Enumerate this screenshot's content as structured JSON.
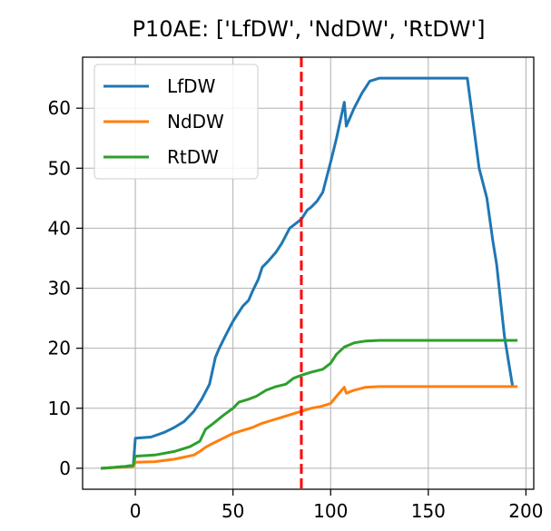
{
  "chart_data": {
    "type": "line",
    "title": "P10AE: ['LfDW', 'NdDW', 'RtDW']",
    "xlabel": "",
    "ylabel": "",
    "xlim": [
      -27,
      204
    ],
    "ylim": [
      -3.5,
      68.5
    ],
    "xticks": [
      0,
      50,
      100,
      150,
      200
    ],
    "yticks": [
      0,
      10,
      20,
      30,
      40,
      50,
      60
    ],
    "grid": true,
    "legend_position": "top-left",
    "vline": {
      "x": 85,
      "color": "#ff0000",
      "style": "dashed"
    },
    "series": [
      {
        "name": "LfDW",
        "color": "#1f77b4",
        "points": [
          [
            -17,
            0
          ],
          [
            -5,
            0.3
          ],
          [
            -1,
            0.5
          ],
          [
            0,
            5
          ],
          [
            8,
            5.2
          ],
          [
            15,
            6
          ],
          [
            20,
            6.8
          ],
          [
            25,
            7.8
          ],
          [
            30,
            9.5
          ],
          [
            34,
            11.5
          ],
          [
            38,
            14
          ],
          [
            41,
            18.5
          ],
          [
            43,
            20
          ],
          [
            46,
            22
          ],
          [
            50,
            24.5
          ],
          [
            53,
            26
          ],
          [
            55,
            27
          ],
          [
            58,
            28
          ],
          [
            60,
            29.5
          ],
          [
            63,
            31.5
          ],
          [
            65,
            33.5
          ],
          [
            68,
            34.5
          ],
          [
            72,
            36
          ],
          [
            75,
            37.5
          ],
          [
            79,
            40
          ],
          [
            83,
            41
          ],
          [
            85,
            41.5
          ],
          [
            88,
            43
          ],
          [
            90,
            43.5
          ],
          [
            93,
            44.5
          ],
          [
            96,
            46
          ],
          [
            98,
            48.5
          ],
          [
            100,
            51
          ],
          [
            103,
            55
          ],
          [
            105,
            58
          ],
          [
            107,
            61
          ],
          [
            108,
            57
          ],
          [
            110,
            58.5
          ],
          [
            112,
            60
          ],
          [
            116,
            62.5
          ],
          [
            120,
            64.5
          ],
          [
            125,
            65
          ],
          [
            140,
            65
          ],
          [
            160,
            65
          ],
          [
            170,
            65
          ],
          [
            172,
            60
          ],
          [
            176,
            50
          ],
          [
            180,
            45
          ],
          [
            183,
            38
          ],
          [
            185,
            34
          ],
          [
            187,
            28
          ],
          [
            189,
            22
          ],
          [
            191,
            18
          ],
          [
            193,
            14
          ]
        ]
      },
      {
        "name": "NdDW",
        "color": "#ff7f0e",
        "points": [
          [
            -17,
            0
          ],
          [
            -5,
            0.2
          ],
          [
            -1,
            0.3
          ],
          [
            0,
            1
          ],
          [
            10,
            1.1
          ],
          [
            20,
            1.5
          ],
          [
            30,
            2.2
          ],
          [
            33,
            2.8
          ],
          [
            36,
            3.5
          ],
          [
            40,
            4.2
          ],
          [
            45,
            5
          ],
          [
            50,
            5.8
          ],
          [
            55,
            6.3
          ],
          [
            60,
            6.8
          ],
          [
            65,
            7.5
          ],
          [
            70,
            8
          ],
          [
            75,
            8.5
          ],
          [
            80,
            9
          ],
          [
            85,
            9.5
          ],
          [
            90,
            10
          ],
          [
            95,
            10.3
          ],
          [
            100,
            10.8
          ],
          [
            103,
            12
          ],
          [
            107,
            13.5
          ],
          [
            108,
            12.5
          ],
          [
            112,
            13
          ],
          [
            118,
            13.5
          ],
          [
            125,
            13.6
          ],
          [
            150,
            13.6
          ],
          [
            175,
            13.6
          ],
          [
            195,
            13.6
          ]
        ]
      },
      {
        "name": "RtDW",
        "color": "#2ca02c",
        "points": [
          [
            -17,
            0
          ],
          [
            -5,
            0.3
          ],
          [
            -1,
            0.5
          ],
          [
            0,
            2
          ],
          [
            10,
            2.2
          ],
          [
            20,
            2.8
          ],
          [
            28,
            3.6
          ],
          [
            33,
            4.5
          ],
          [
            36,
            6.5
          ],
          [
            40,
            7.5
          ],
          [
            45,
            8.8
          ],
          [
            50,
            10
          ],
          [
            53,
            11
          ],
          [
            58,
            11.5
          ],
          [
            62,
            12
          ],
          [
            67,
            13
          ],
          [
            72,
            13.6
          ],
          [
            77,
            14
          ],
          [
            81,
            15
          ],
          [
            85,
            15.5
          ],
          [
            90,
            16
          ],
          [
            96,
            16.5
          ],
          [
            100,
            17.5
          ],
          [
            103,
            19
          ],
          [
            107,
            20.2
          ],
          [
            112,
            20.9
          ],
          [
            118,
            21.2
          ],
          [
            125,
            21.3
          ],
          [
            150,
            21.3
          ],
          [
            175,
            21.3
          ],
          [
            195,
            21.3
          ]
        ]
      }
    ]
  }
}
